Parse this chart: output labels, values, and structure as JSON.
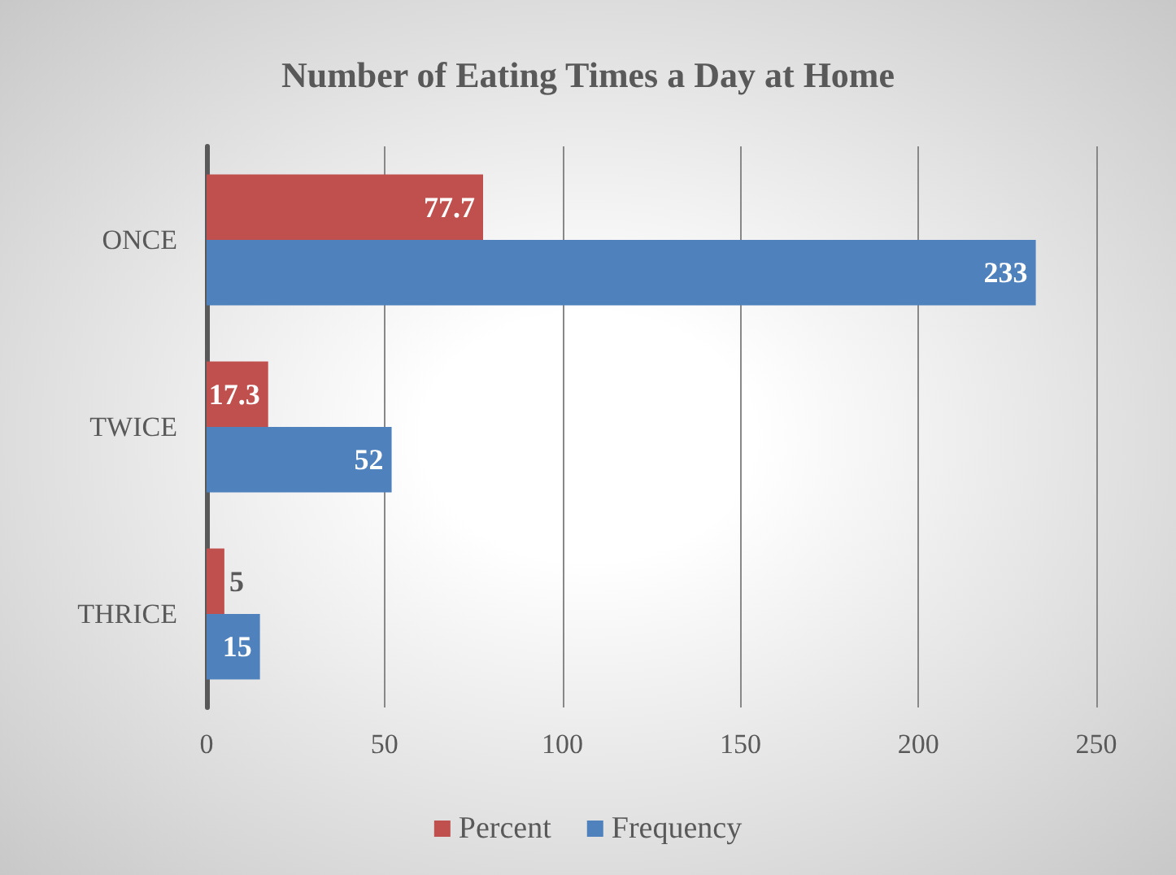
{
  "chart_data": {
    "type": "bar",
    "orientation": "horizontal",
    "title": "Number of Eating Times a Day at Home",
    "categories": [
      "ONCE",
      "TWICE",
      "THRICE"
    ],
    "series": [
      {
        "name": "Percent",
        "color": "#c0504d",
        "values": [
          77.7,
          17.3,
          5
        ]
      },
      {
        "name": "Frequency",
        "color": "#4f81bd",
        "values": [
          233,
          52,
          15
        ]
      }
    ],
    "xlim": [
      0,
      250
    ],
    "xticks": [
      0,
      50,
      100,
      150,
      200,
      250
    ],
    "grid": "x",
    "legend": "bottom",
    "data_labels": true
  }
}
